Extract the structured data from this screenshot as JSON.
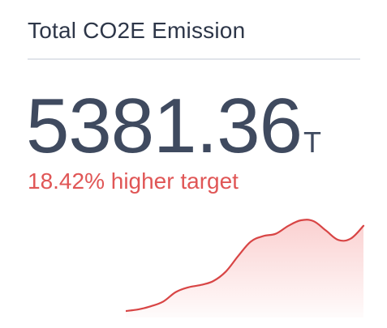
{
  "card": {
    "title": "Total CO2E Emission",
    "value": "5381.36",
    "unit": "T",
    "delta_text": "18.42% higher target"
  },
  "colors": {
    "title": "#2d3648",
    "value": "#3f4a5f",
    "negative": "#e05656",
    "divider": "#e1e4ea"
  },
  "sparkline": {
    "values": [
      0,
      2,
      6,
      12,
      24,
      30,
      33,
      38,
      50,
      70,
      88,
      95,
      98,
      108,
      115,
      114,
      102,
      90,
      92,
      108
    ]
  }
}
